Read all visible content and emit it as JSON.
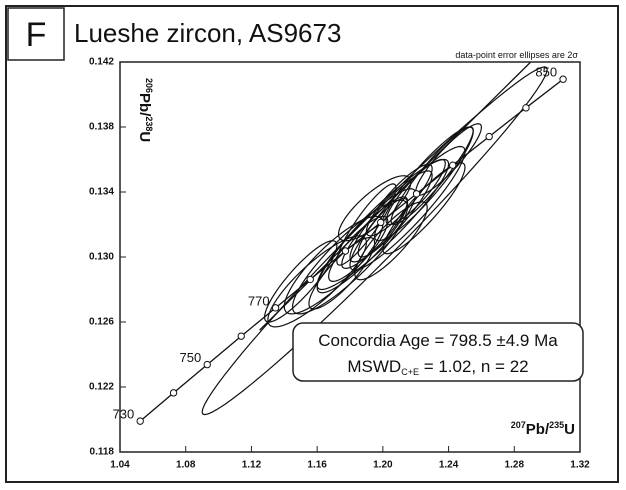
{
  "chart_data": {
    "type": "concordia",
    "panel_label": "F",
    "title": "Lueshe zircon, AS9673",
    "note": "data-point error ellipses are 2σ",
    "x_label": [
      "207",
      "Pb/",
      "235",
      "U"
    ],
    "y_label": [
      "206",
      "Pb/",
      "238",
      "U"
    ],
    "annotation": {
      "line1": "Concordia Age = 798.5 ±4.9 Ma",
      "line2": [
        "MSWD",
        "C+E",
        " = 1.02, n = 22"
      ]
    },
    "xlim": [
      1.04,
      1.32
    ],
    "xticks": [
      1.04,
      1.08,
      1.12,
      1.16,
      {
        "value": 1.2,
        "label": "1.20"
      },
      1.24,
      1.28,
      1.32
    ],
    "ylim": [
      0.118,
      0.142
    ],
    "yticks": [
      0.118,
      0.122,
      0.126,
      {
        "value": 0.13,
        "label": "0.130"
      },
      0.134,
      0.138,
      0.142
    ],
    "color": "#111111",
    "concordia": {
      "x": [
        1.0523,
        1.0726,
        1.0931,
        1.1138,
        1.1347,
        1.1558,
        1.1772,
        1.1987,
        1.2205,
        1.2425,
        1.2647,
        1.2871,
        1.3097
      ],
      "y": [
        0.1199,
        0.12164,
        0.12338,
        0.12513,
        0.12687,
        0.12862,
        0.13037,
        0.13213,
        0.13389,
        0.13565,
        0.13741,
        0.13918,
        0.14094
      ],
      "age_labels": [
        730,
        null,
        750,
        null,
        770,
        null,
        null,
        null,
        null,
        null,
        null,
        null,
        850
      ]
    },
    "reference_line": {
      "x": [
        1.125,
        1.29
      ],
      "y": [
        0.1255,
        0.142
      ]
    },
    "ellipses": {
      "x": [
        1.2,
        1.215,
        1.19,
        1.205,
        1.225,
        1.18,
        1.17,
        1.195,
        1.21,
        1.23,
        1.185,
        1.2,
        1.22,
        1.16,
        1.24,
        1.195,
        1.205,
        1.175,
        1.19,
        1.225,
        1.15,
        1.195
      ],
      "y": [
        0.132,
        0.133,
        0.131,
        0.1325,
        0.1345,
        0.13,
        0.1295,
        0.1315,
        0.1335,
        0.135,
        0.1305,
        0.1318,
        0.134,
        0.1285,
        0.136,
        0.133,
        0.131,
        0.129,
        0.132,
        0.133,
        0.1285,
        0.131
      ],
      "sx": [
        0.04,
        0.035,
        0.03,
        0.025,
        0.03,
        0.035,
        0.03,
        0.02,
        0.02,
        0.025,
        0.018,
        0.015,
        0.018,
        0.03,
        0.02,
        0.022,
        0.022,
        0.02,
        0.018,
        0.025,
        0.022,
        0.105
      ],
      "sy": [
        0.004,
        0.0038,
        0.0032,
        0.0028,
        0.0035,
        0.0035,
        0.003,
        0.0022,
        0.0022,
        0.003,
        0.002,
        0.0018,
        0.002,
        0.0028,
        0.0022,
        0.002,
        0.0024,
        0.0022,
        0.0025,
        0.0028,
        0.0025,
        0.0107
      ],
      "rho": [
        0.93,
        0.92,
        0.9,
        0.9,
        0.92,
        0.88,
        0.85,
        0.88,
        0.88,
        0.93,
        0.85,
        0.85,
        0.88,
        0.85,
        0.9,
        0.8,
        0.85,
        0.85,
        0.9,
        0.9,
        0.88,
        0.985
      ]
    }
  }
}
